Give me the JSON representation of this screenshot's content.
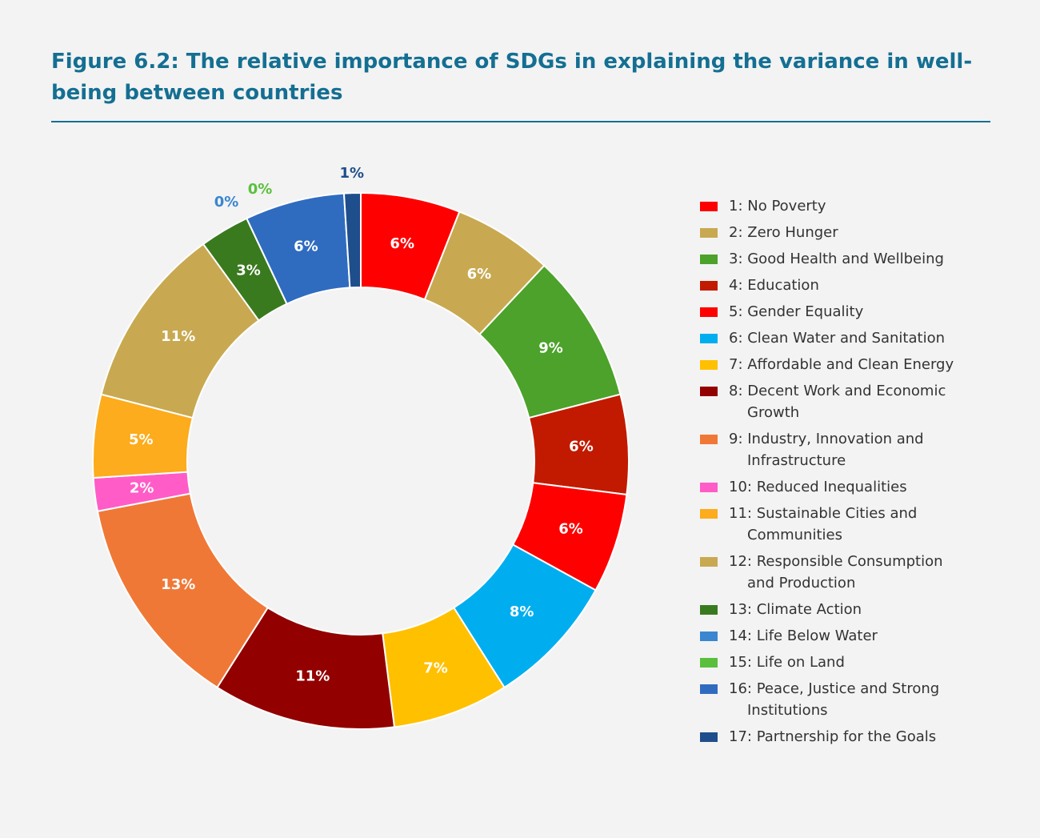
{
  "chart_data": {
    "type": "donut",
    "title": "Figure 6.2: The relative importance of SDGs in explaining the variance in well-being between countries",
    "categories": [
      "1: No Poverty",
      "2: Zero Hunger",
      "3: Good Health and Wellbeing",
      "4: Education",
      "5: Gender Equality",
      "6: Clean Water and Sanitation",
      "7: Affordable and Clean Energy",
      "8: Decent Work and Economic Growth",
      "9: Industry, Innovation and Infrastructure",
      "10: Reduced Inequalities",
      "11: Sustainable Cities and Communities",
      "12: Responsible Consumption and Production",
      "13: Climate Action",
      "14: Life Below Water",
      "15: Life on Land",
      "16: Peace, Justice and Strong Institutions",
      "17: Partnership for the Goals"
    ],
    "values": [
      6,
      6,
      9,
      6,
      6,
      8,
      7,
      11,
      13,
      2,
      5,
      11,
      3,
      0,
      0,
      6,
      1
    ],
    "value_labels": [
      "6%",
      "6%",
      "9%",
      "6%",
      "6%",
      "8%",
      "7%",
      "11%",
      "13%",
      "2%",
      "5%",
      "11%",
      "3%",
      "0%",
      "0%",
      "6%",
      "1%"
    ],
    "colors": [
      "#ff0000",
      "#c8a951",
      "#4ca22a",
      "#c21a00",
      "#ff0000",
      "#00aeef",
      "#ffc000",
      "#920000",
      "#f07836",
      "#ff5cc8",
      "#fcac1c",
      "#c8a951",
      "#3a7a1f",
      "#3a86d0",
      "#5bbf3e",
      "#2f6cc0",
      "#1f4e8c"
    ],
    "legend": "right"
  }
}
